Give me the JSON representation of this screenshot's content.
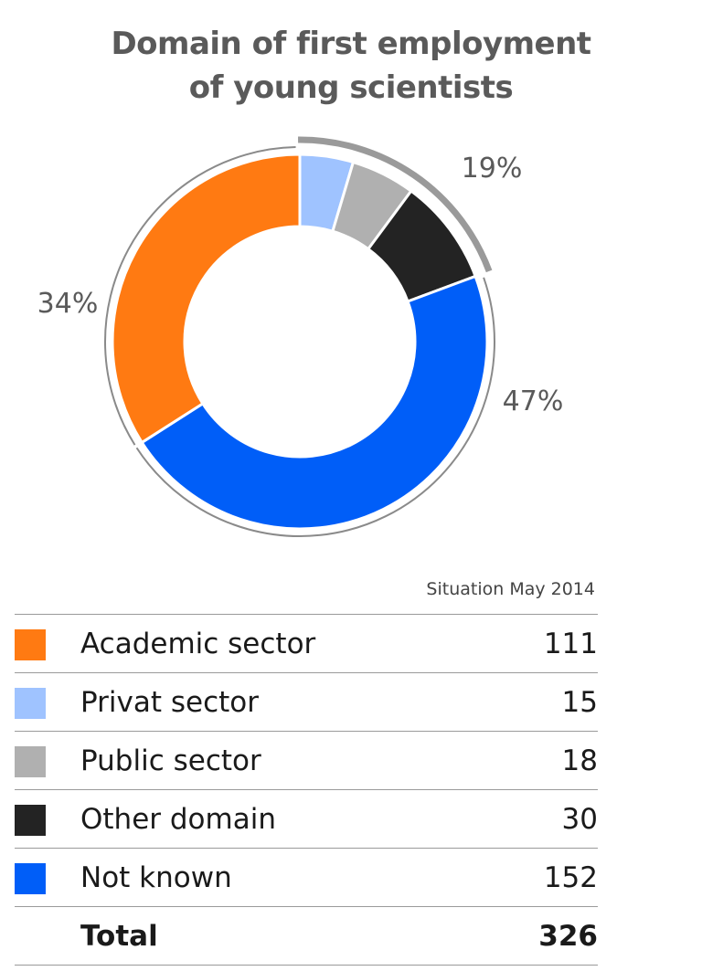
{
  "title_line1": "Domain of first employment",
  "title_line2": "of young scientists",
  "chart_data": {
    "type": "pie",
    "title": "Domain of first employment of young scientists",
    "subtitle": "Situation May 2014",
    "slices": [
      {
        "label": "Academic sector",
        "value": 111,
        "color": "#ff7a12"
      },
      {
        "label": "Privat sector",
        "value": 15,
        "color": "#9fc3ff"
      },
      {
        "label": "Public sector",
        "value": 18,
        "color": "#b0b0b0"
      },
      {
        "label": "Other domain",
        "value": 30,
        "color": "#232323"
      },
      {
        "label": "Not known",
        "value": 152,
        "color": "#005ef8"
      }
    ],
    "total": 326,
    "annotations": [
      {
        "text": "34%",
        "group": "Academic sector"
      },
      {
        "text": "19%",
        "group": "Privat sector + Public sector + Other domain"
      },
      {
        "text": "47%",
        "group": "Not known"
      }
    ]
  },
  "legend": {
    "situation": "Situation May 2014",
    "rows": [
      {
        "label": "Academic sector",
        "value": "111",
        "color": "#ff7a12"
      },
      {
        "label": "Privat sector",
        "value": "15",
        "color": "#9fc3ff"
      },
      {
        "label": "Public sector",
        "value": "18",
        "color": "#b0b0b0"
      },
      {
        "label": "Other domain",
        "value": "30",
        "color": "#232323"
      },
      {
        "label": "Not known",
        "value": "152",
        "color": "#005ef8"
      }
    ],
    "total_label": "Total",
    "total_value": "326"
  }
}
